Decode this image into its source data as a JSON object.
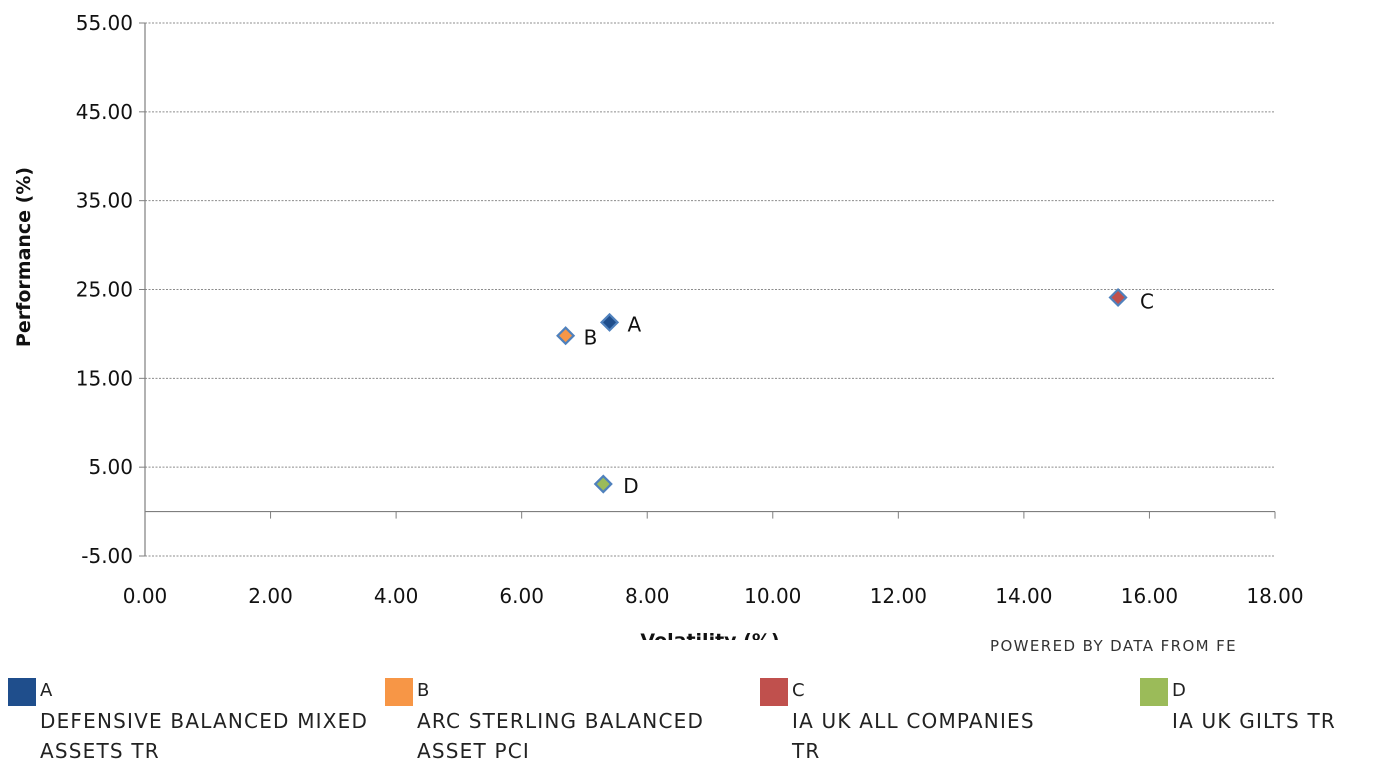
{
  "chart_data": {
    "type": "scatter",
    "title": "",
    "xlabel": "Volatility (%)",
    "ylabel": "Performance (%)",
    "xlim": [
      0,
      18
    ],
    "ylim": [
      -5,
      55
    ],
    "xticks": [
      "0.00",
      "2.00",
      "4.00",
      "6.00",
      "8.00",
      "10.00",
      "12.00",
      "14.00",
      "16.00",
      "18.00"
    ],
    "yticks": [
      "55.00",
      "45.00",
      "35.00",
      "25.00",
      "15.00",
      "5.00",
      "-5.00"
    ],
    "grid": true,
    "legend_position": "bottom",
    "series": [
      {
        "key": "A",
        "name": "DEFENSIVE BALANCED MIXED ASSETS TR",
        "x": 7.4,
        "y": 21.3,
        "color": "#1F4E8C"
      },
      {
        "key": "B",
        "name": "ARC STERLING BALANCED ASSET PCI",
        "x": 6.7,
        "y": 19.8,
        "color": "#F79646"
      },
      {
        "key": "C",
        "name": "IA UK ALL COMPANIES TR",
        "x": 15.5,
        "y": 24.1,
        "color": "#C0504D"
      },
      {
        "key": "D",
        "name": "IA UK GILTS TR",
        "x": 7.3,
        "y": 3.1,
        "color": "#9BBB59"
      }
    ]
  },
  "credit": "POWERED BY DATA FROM FE",
  "marker_outline_color": "#4F81BD"
}
